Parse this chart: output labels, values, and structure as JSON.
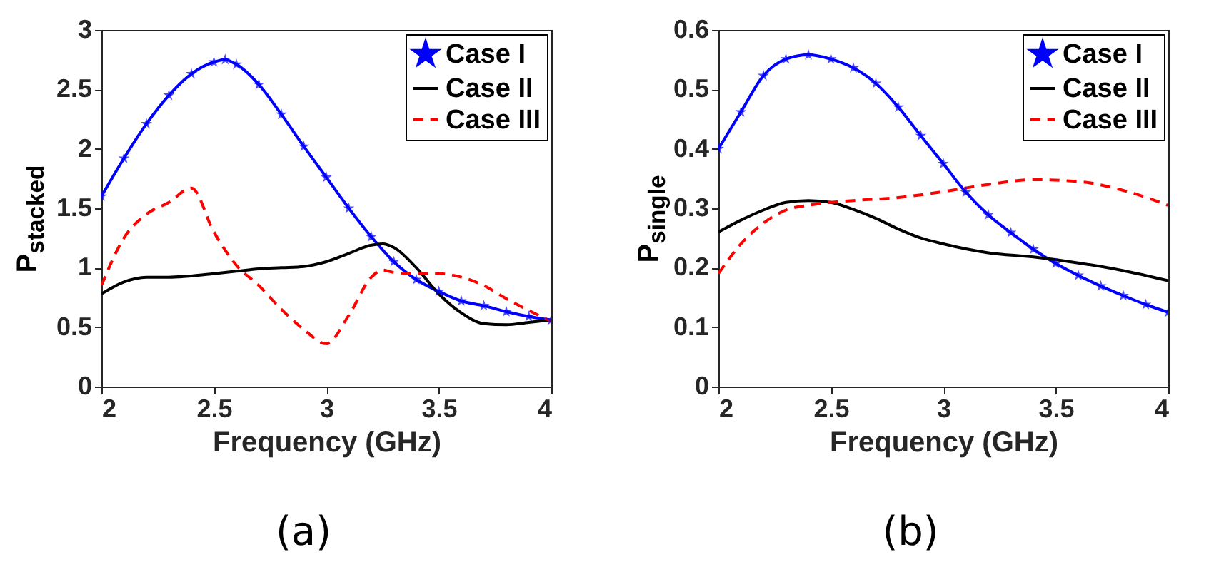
{
  "chart_data": [
    {
      "type": "line",
      "ylabel": "P$_{stacked}$",
      "xlabel": "Frequency (GHz)",
      "annotations": [
        "(a)"
      ],
      "xlim": [
        2,
        4
      ],
      "xticks": [
        2,
        2.5,
        3,
        3.5,
        4
      ],
      "ylim": [
        0,
        3
      ],
      "yticks": [
        0,
        0.5,
        1,
        1.5,
        2,
        2.5,
        3
      ],
      "legend": "top right",
      "grid": false,
      "series": [
        {
          "name": "Case I",
          "color": "#0000ff",
          "marker": "star",
          "line_style": "solid",
          "x": [
            2,
            2.1,
            2.2,
            2.3,
            2.4,
            2.5,
            2.55,
            2.6,
            2.7,
            2.8,
            2.9,
            3,
            3.1,
            3.2,
            3.3,
            3.4,
            3.5,
            3.6,
            3.7,
            3.8,
            3.9,
            4
          ],
          "values": [
            1.6,
            1.92,
            2.21,
            2.45,
            2.63,
            2.73,
            2.75,
            2.71,
            2.54,
            2.29,
            2.02,
            1.76,
            1.5,
            1.26,
            1.05,
            0.9,
            0.8,
            0.72,
            0.68,
            0.63,
            0.59,
            0.56
          ]
        },
        {
          "name": "Case II",
          "color": "#000000",
          "marker": "none",
          "line_style": "solid",
          "x": [
            2,
            2.1,
            2.2,
            2.3,
            2.4,
            2.5,
            2.6,
            2.7,
            2.8,
            2.9,
            3,
            3.1,
            3.2,
            3.25,
            3.3,
            3.4,
            3.5,
            3.6,
            3.7,
            3.8,
            3.9,
            4
          ],
          "values": [
            0.78,
            0.88,
            0.92,
            0.92,
            0.93,
            0.95,
            0.97,
            0.99,
            1.0,
            1.01,
            1.05,
            1.12,
            1.19,
            1.2,
            1.17,
            1.0,
            0.78,
            0.62,
            0.53,
            0.52,
            0.54,
            0.56
          ]
        },
        {
          "name": "Case III",
          "color": "#ff0000",
          "marker": "none",
          "line_style": "dashed",
          "x": [
            2,
            2.1,
            2.2,
            2.3,
            2.4,
            2.5,
            2.6,
            2.7,
            2.8,
            2.9,
            3,
            3.1,
            3.2,
            3.25,
            3.3,
            3.4,
            3.5,
            3.6,
            3.7,
            3.8,
            3.9,
            4
          ],
          "values": [
            0.85,
            1.25,
            1.45,
            1.55,
            1.67,
            1.3,
            1.02,
            0.85,
            0.65,
            0.48,
            0.36,
            0.6,
            0.92,
            0.98,
            0.96,
            0.95,
            0.95,
            0.92,
            0.85,
            0.74,
            0.64,
            0.55
          ]
        }
      ]
    },
    {
      "type": "line",
      "ylabel": "P$_{single}$",
      "xlabel": "Frequency (GHz)",
      "annotations": [
        "(b)"
      ],
      "xlim": [
        2,
        4
      ],
      "xticks": [
        2,
        2.5,
        3,
        3.5,
        4
      ],
      "ylim": [
        0,
        0.6
      ],
      "yticks": [
        0,
        0.1,
        0.2,
        0.3,
        0.4,
        0.5,
        0.6
      ],
      "legend": "top right",
      "grid": false,
      "series": [
        {
          "name": "Case I",
          "color": "#0000ff",
          "marker": "star",
          "line_style": "solid",
          "x": [
            2,
            2.1,
            2.2,
            2.3,
            2.4,
            2.5,
            2.6,
            2.7,
            2.8,
            2.9,
            3,
            3.1,
            3.2,
            3.3,
            3.4,
            3.5,
            3.6,
            3.7,
            3.8,
            3.9,
            4
          ],
          "values": [
            0.4,
            0.462,
            0.523,
            0.551,
            0.558,
            0.551,
            0.536,
            0.51,
            0.47,
            0.422,
            0.375,
            0.327,
            0.289,
            0.259,
            0.231,
            0.207,
            0.187,
            0.169,
            0.153,
            0.138,
            0.125
          ]
        },
        {
          "name": "Case II",
          "color": "#000000",
          "marker": "none",
          "line_style": "solid",
          "x": [
            2,
            2.1,
            2.2,
            2.3,
            2.4,
            2.5,
            2.6,
            2.7,
            2.8,
            2.9,
            3,
            3.2,
            3.4,
            3.6,
            3.8,
            4
          ],
          "values": [
            0.26,
            0.28,
            0.297,
            0.31,
            0.313,
            0.31,
            0.298,
            0.283,
            0.265,
            0.25,
            0.24,
            0.225,
            0.218,
            0.208,
            0.195,
            0.178
          ]
        },
        {
          "name": "Case III",
          "color": "#ff0000",
          "marker": "none",
          "line_style": "dashed",
          "x": [
            2,
            2.1,
            2.2,
            2.3,
            2.4,
            2.5,
            2.6,
            2.8,
            3,
            3.2,
            3.4,
            3.6,
            3.8,
            4
          ],
          "values": [
            0.19,
            0.24,
            0.275,
            0.297,
            0.305,
            0.31,
            0.313,
            0.318,
            0.328,
            0.34,
            0.348,
            0.345,
            0.33,
            0.305
          ]
        }
      ]
    }
  ]
}
